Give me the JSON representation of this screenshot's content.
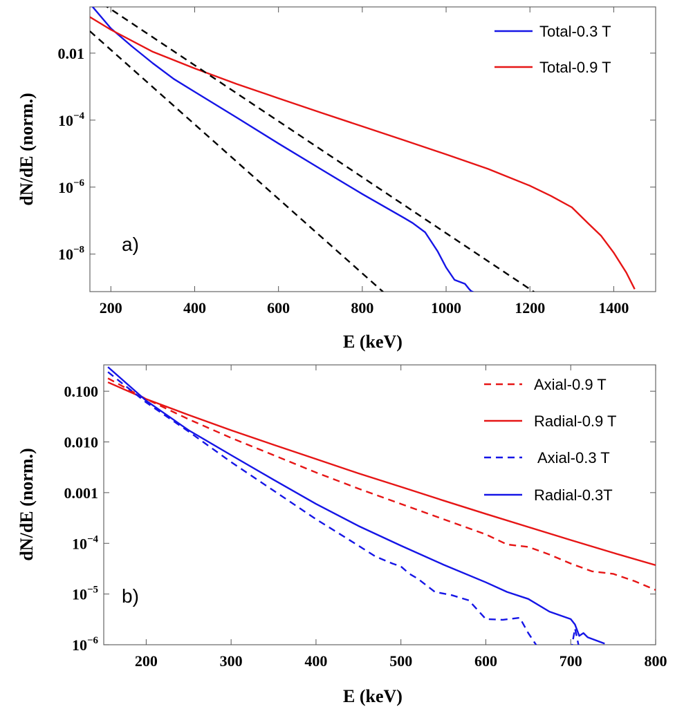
{
  "chart_data": [
    {
      "type": "line",
      "panel_label": "a)",
      "xlabel": "E (keV)",
      "ylabel": "dN/dE (norm.)",
      "xlim": [
        150,
        1500
      ],
      "ylim_log10": [
        -9.12,
        -0.62
      ],
      "x_ticks": [
        "200",
        "400",
        "600",
        "800",
        "1000",
        "1200",
        "1400"
      ],
      "x_tick_values": [
        200,
        400,
        600,
        800,
        1000,
        1200,
        1400
      ],
      "y_ticks": [
        {
          "value": 0.01,
          "base": "0.01",
          "exp": ""
        },
        {
          "value": 0.0001,
          "base": "10",
          "exp": "−4"
        },
        {
          "value": 1e-06,
          "base": "10",
          "exp": "−6"
        },
        {
          "value": 1e-08,
          "base": "10",
          "exp": "−8"
        }
      ],
      "legend_position": "top-right",
      "series": [
        {
          "name": "Total-0.3 T",
          "color": "#1515e6",
          "style": "solid",
          "in_legend": true,
          "x": [
            150,
            200,
            250,
            300,
            350,
            400,
            500,
            600,
            700,
            800,
            900,
            920,
            950,
            980,
            1000,
            1020,
            1045,
            1055,
            1060,
            1065
          ],
          "y": [
            0.3,
            0.055,
            0.016,
            0.005,
            0.0017,
            0.0007,
            0.00012,
            2e-05,
            3.5e-06,
            6.2e-07,
            1.2e-07,
            8.5e-08,
            4.5e-08,
            1.2e-08,
            4e-09,
            1.7e-09,
            1.3e-09,
            9e-10,
            7.8e-10,
            7.4e-10
          ]
        },
        {
          "name": "Total-0.9 T",
          "color": "#e61515",
          "style": "solid",
          "in_legend": true,
          "x": [
            150,
            200,
            300,
            400,
            500,
            600,
            700,
            800,
            900,
            1000,
            1100,
            1200,
            1250,
            1300,
            1340,
            1370,
            1400,
            1430,
            1450
          ],
          "y": [
            0.12,
            0.05,
            0.011,
            0.0035,
            0.0012,
            0.00045,
            0.00017,
            6.5e-05,
            2.5e-05,
            9.5e-06,
            3.5e-06,
            1.1e-06,
            5.5e-07,
            2.5e-07,
            8e-08,
            3.5e-08,
            1.1e-08,
            2.8e-09,
            9e-10
          ]
        },
        {
          "name": "fit 1",
          "color": "#000000",
          "style": "dashed",
          "in_legend": false,
          "x": [
            150,
            850
          ],
          "y": [
            0.045,
            7.4e-10
          ]
        },
        {
          "name": "fit 2",
          "color": "#000000",
          "style": "dashed",
          "in_legend": false,
          "x": [
            180,
            1210
          ],
          "y": [
            0.3,
            7.4e-10
          ]
        }
      ]
    },
    {
      "type": "line",
      "panel_label": "b)",
      "xlabel": "E (keV)",
      "ylabel": "dN/dE (norm.)",
      "xlim": [
        150,
        800
      ],
      "ylim_log10": [
        -6.0,
        -0.48
      ],
      "x_ticks": [
        "200",
        "300",
        "400",
        "500",
        "600",
        "700",
        "800"
      ],
      "x_tick_values": [
        200,
        300,
        400,
        500,
        600,
        700,
        800
      ],
      "y_ticks": [
        {
          "value": 0.1,
          "base": "0.100",
          "exp": ""
        },
        {
          "value": 0.01,
          "base": "0.010",
          "exp": ""
        },
        {
          "value": 0.001,
          "base": "0.001",
          "exp": ""
        },
        {
          "value": 0.0001,
          "base": "10",
          "exp": "−4"
        },
        {
          "value": 1e-05,
          "base": "10",
          "exp": "−5"
        },
        {
          "value": 1e-06,
          "base": "10",
          "exp": "−6"
        }
      ],
      "legend_position": "top-right",
      "series": [
        {
          "name": "Axial-0.9 T",
          "color": "#e61515",
          "style": "dashed",
          "in_legend": true,
          "x": [
            155,
            200,
            250,
            300,
            350,
            400,
            450,
            500,
            550,
            600,
            625,
            650,
            675,
            700,
            725,
            750,
            775,
            800
          ],
          "y": [
            0.18,
            0.07,
            0.028,
            0.012,
            0.0055,
            0.0025,
            0.0012,
            0.0006,
            0.0003,
            0.00015,
            9.5e-05,
            8.5e-05,
            6e-05,
            4e-05,
            2.8e-05,
            2.5e-05,
            1.8e-05,
            1.2e-05
          ]
        },
        {
          "name": "Radial-0.9 T",
          "color": "#e61515",
          "style": "solid",
          "in_legend": true,
          "x": [
            155,
            200,
            250,
            300,
            350,
            400,
            450,
            500,
            550,
            600,
            650,
            700,
            750,
            800
          ],
          "y": [
            0.15,
            0.07,
            0.034,
            0.017,
            0.0088,
            0.0046,
            0.0024,
            0.0013,
            0.0007,
            0.00038,
            0.00021,
            0.000116,
            6.5e-05,
            3.7e-05
          ]
        },
        {
          "name": "Axial-0.3 T",
          "color": "#1515e6",
          "style": "dashed",
          "in_legend": true,
          "x": [
            155,
            200,
            250,
            300,
            350,
            400,
            450,
            470,
            490,
            500,
            510,
            520,
            540,
            560,
            580,
            600,
            620,
            640,
            650,
            660,
            670,
            680,
            690,
            700,
            705,
            710,
            715
          ],
          "y": [
            0.24,
            0.06,
            0.016,
            0.004,
            0.0011,
            0.0003,
            9e-05,
            5.5e-05,
            4e-05,
            3.5e-05,
            2.5e-05,
            2e-05,
            1.1e-05,
            9.5e-06,
            7.5e-06,
            3.2e-06,
            3.1e-06,
            3.4e-06,
            1.7e-06,
            9.5e-07,
            8.5e-07,
            7e-07,
            9.5e-07,
            7e-07,
            2.1e-06,
            8.5e-07,
            7e-07
          ]
        },
        {
          "name": "Radial-0.3T",
          "color": "#1515e6",
          "style": "solid",
          "in_legend": true,
          "x": [
            155,
            200,
            250,
            300,
            350,
            400,
            450,
            500,
            550,
            600,
            625,
            650,
            675,
            700,
            705,
            710,
            715,
            720,
            740
          ],
          "y": [
            0.3,
            0.065,
            0.017,
            0.0055,
            0.0018,
            0.0006,
            0.00022,
            9e-05,
            3.8e-05,
            1.7e-05,
            1.1e-05,
            8e-06,
            4.5e-06,
            3.2e-06,
            2.5e-06,
            1.5e-06,
            1.7e-06,
            1.4e-06,
            1.05e-06
          ]
        }
      ]
    }
  ]
}
